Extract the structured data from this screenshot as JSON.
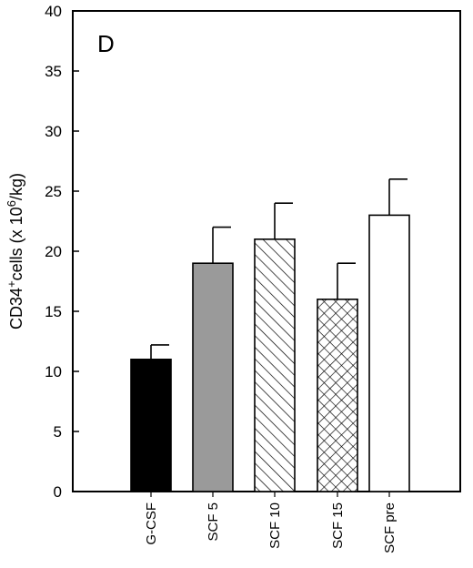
{
  "chart_data": {
    "type": "bar",
    "panel_label": "D",
    "ylabel": {
      "main": "CD34",
      "sup1": "+",
      "mid": "cells (x 10",
      "sup2": "6",
      "tail": "/kg)"
    },
    "ylim": [
      0,
      40
    ],
    "yticks": [
      0,
      5,
      10,
      15,
      20,
      25,
      30,
      35,
      40
    ],
    "grid": false,
    "categories": [
      "G-CSF",
      "SCF 5",
      "SCF 10",
      "SCF 15",
      "SCF pre"
    ],
    "values": [
      11,
      19,
      21,
      16,
      23
    ],
    "errors": [
      1.2,
      3,
      3,
      3,
      3
    ],
    "fills": [
      "solid-black",
      "gray",
      "diagonal-hatch",
      "cross-hatch",
      "white"
    ],
    "colors": {
      "solid": "#000000",
      "gray": "#9a9a9a",
      "white": "#ffffff"
    }
  }
}
